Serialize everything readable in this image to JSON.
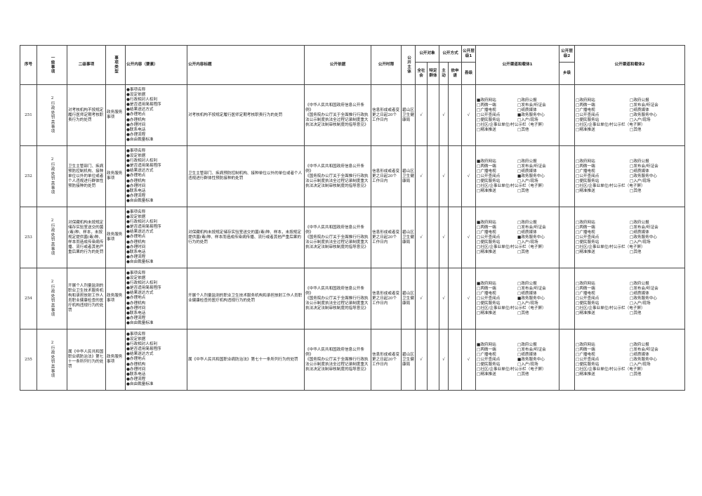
{
  "headers": {
    "seq": "序号",
    "level1": "一级事项",
    "level2": "二级事项",
    "type": "事项类型",
    "content": "公开内容（要素）",
    "title": "公开内容标题",
    "basis": "公开依据",
    "time_limit": "公开时限",
    "subject": "公开主体",
    "audience": "公开对象",
    "audience_all": "全社会",
    "audience_specific": "特定群体",
    "method": "公开方式",
    "method_active": "主动",
    "method_request": "依申请",
    "level_1": "公开层级1",
    "county": "县级",
    "channels1": "公开渠道和载体1",
    "level_2": "公开层级2",
    "township": "乡级",
    "channels2": "公开渠道和载体2"
  },
  "content_items": [
    "事项名称",
    "设定依据",
    "行政相对人权利",
    "是否适用简易程序",
    "结果送达方式",
    "办理地点",
    "办理机构",
    "办理时间",
    "联系电话",
    "办理流程",
    "自由裁量标准"
  ],
  "channel_options": [
    "政府网站",
    "政府公报",
    "两微一端",
    "发布会/听证会",
    "广播电视",
    "纸质媒体",
    "公开查阅点",
    "政务服务中心",
    "便民服务站",
    "入户/现场",
    "社区/企事业单位/村公示栏（电子屏）",
    "精准推送",
    "其他"
  ],
  "channels1_checked": [
    "政府网站",
    "政务服务中心"
  ],
  "channels2_checked": [],
  "check_mark": "√",
  "rows": [
    {
      "seq": "251",
      "level1": "2行政处罚类事项",
      "level2": "对考核机构不按规定履行医师定期考核职责行为的处罚",
      "type": "政务服务事项",
      "title": "对考核机构不按规定履行医师定期考核职责行为的处罚"
    },
    {
      "seq": "252",
      "level1": "2行政处罚类事项",
      "level2": "卫生主管部门、疾病预防控制机构、接种单位以外的单位或者个人违规进行群体性预防接种的处罚",
      "type": "政务服务事项",
      "title": "卫生主管部门、疾病预防控制机构、接种单位以外的单位或者个人违规进行群体性预防接种的处罚"
    },
    {
      "seq": "253",
      "level1": "2行政处罚类事项",
      "level2": "对保藏机构未按规定储存实验室送交的菌(毒)种、样本，未按规定提供菌(毒)种、样本而造成传染病传播、流行或者其他严重后果的行为的处罚",
      "type": "政务服务事项",
      "title": "对保藏机构未按规定储存实验室送交的菌(毒)种、样本，未按规定提供菌(毒)种、样本而造成传染病传播、流行或者其他严重后果的行为的处罚"
    },
    {
      "seq": "254",
      "level1": "2行政处罚类事项",
      "level2": "开展个人剂量监测的职业卫生技术服务机构和承担放射工作人员职业健康检查的医疗机构违规行为的处罚",
      "type": "政务服务事项",
      "title": "开展个人剂量监测的职业卫生技术服务机构和承担放射工作人员职业健康检查的医疗机构违规行为的处罚"
    },
    {
      "seq": "255",
      "level1": "2行政处罚类事项",
      "level2": "属《中华人民共和国职业病防治法》第七十一条所列行为的处罚",
      "type": "政务服务事项",
      "title": "属《中华人民共和国职业病防治法》第七十一条所列行为的处罚"
    }
  ],
  "basis": "《中华人民共和国政府信息公开条例》\n《国务院办公厅关于全面推行行政执法公示制度执法全过程记录制度重大执法决定法制审核制度的指导意见》",
  "time_limit": "信息形成或者变更之日起20个工作日内",
  "subject": "碧山区卫生健康局"
}
